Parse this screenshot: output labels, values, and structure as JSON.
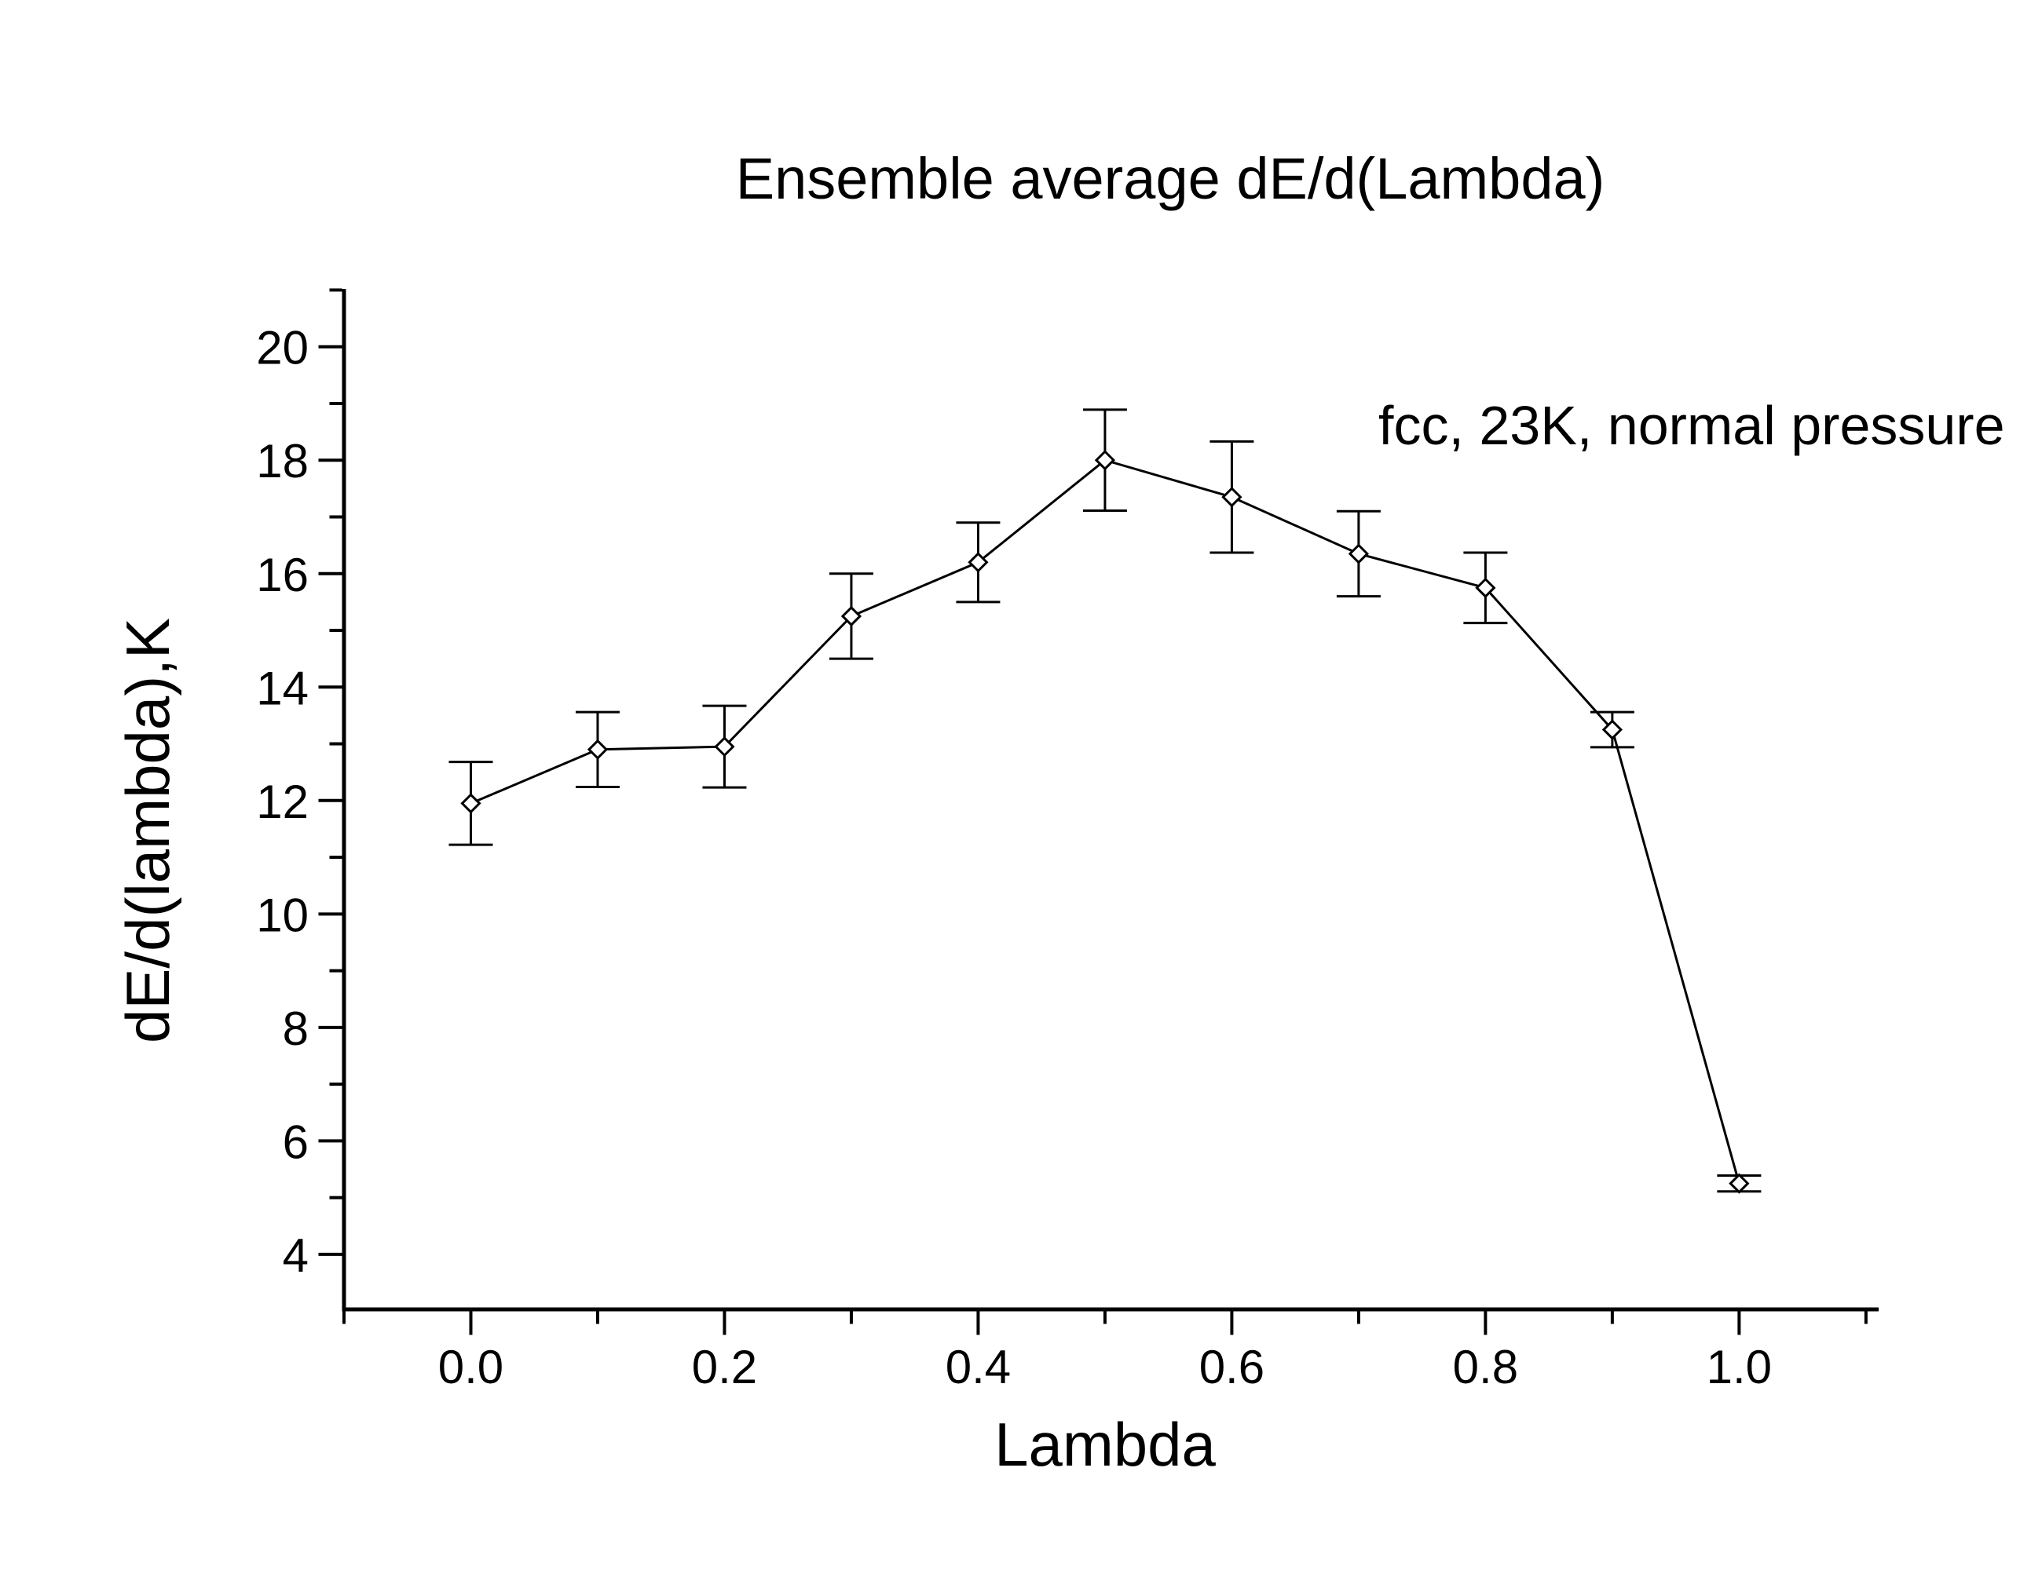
{
  "chart_data": {
    "type": "line",
    "title": "Ensemble average dE/d(Lambda)",
    "annotation": "fcc, 23K, normal pressure",
    "xlabel": "Lambda",
    "ylabel": "dE/d(lambda),K",
    "x": [
      0.0,
      0.1,
      0.2,
      0.3,
      0.4,
      0.5,
      0.6,
      0.7,
      0.8,
      0.9,
      1.0
    ],
    "series": [
      {
        "name": "Ensemble average dE/d(lambda), K",
        "values": [
          11.95,
          12.9,
          12.95,
          15.25,
          16.2,
          18.0,
          17.35,
          16.35,
          15.75,
          13.25,
          5.25
        ],
        "errors": [
          0.73,
          0.66,
          0.72,
          0.75,
          0.7,
          0.89,
          0.98,
          0.75,
          0.62,
          0.31,
          0.14
        ]
      }
    ],
    "xlim": [
      -0.1,
      1.11
    ],
    "ylim": [
      3.03,
      21.02
    ],
    "x_major_ticks": [
      0.0,
      0.2,
      0.4,
      0.6,
      0.8,
      1.0
    ],
    "x_major_tick_labels": [
      "0.0",
      "0.2",
      "0.4",
      "0.6",
      "0.8",
      "1.0"
    ],
    "x_minor_ticks": [
      -0.1,
      0.1,
      0.3,
      0.5,
      0.7,
      0.9,
      1.1
    ],
    "y_major_ticks": [
      20,
      18,
      16,
      14,
      12,
      10,
      8,
      6,
      4
    ],
    "y_major_tick_labels": [
      "20",
      "18",
      "16",
      "14",
      "12",
      "10",
      "8",
      "6",
      "4"
    ],
    "y_minor_ticks": [
      21,
      19,
      17,
      15,
      13,
      11,
      9,
      7,
      5
    ],
    "grid": false,
    "legend": false,
    "marker": "open-diamond",
    "line_color": "#000000",
    "text_color": "#000000",
    "background": "#ffffff"
  }
}
